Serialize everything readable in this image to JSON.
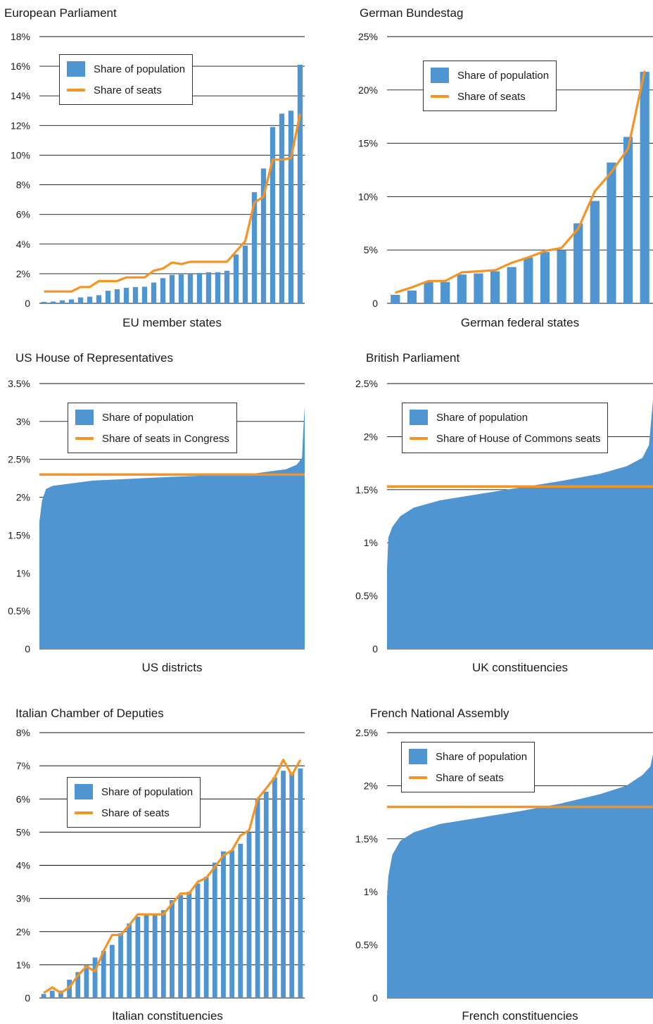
{
  "colors": {
    "population": "#4f95d2",
    "seats": "#f39424",
    "grid": "#111111"
  },
  "chart_data": [
    {
      "id": "eu",
      "type": "bar",
      "title": "European Parliament",
      "xlabel": "EU member states",
      "ylim": [
        0,
        18
      ],
      "yticks": [
        "0",
        "2%",
        "4%",
        "6%",
        "8%",
        "10%",
        "12%",
        "14%",
        "16%",
        "18%"
      ],
      "legend": [
        "Share of population",
        "Share of seats"
      ],
      "series": [
        {
          "name": "Share of population",
          "kind": "bar",
          "values": [
            0.1,
            0.12,
            0.2,
            0.26,
            0.4,
            0.45,
            0.55,
            0.85,
            0.95,
            1.05,
            1.1,
            1.12,
            1.4,
            1.7,
            1.92,
            1.95,
            2.0,
            2.05,
            2.1,
            2.1,
            2.2,
            3.3,
            3.9,
            7.5,
            9.1,
            11.9,
            12.8,
            13.0,
            16.1
          ]
        },
        {
          "name": "Share of seats",
          "kind": "line",
          "values": [
            0.8,
            0.8,
            0.8,
            0.8,
            1.1,
            1.1,
            1.5,
            1.5,
            1.5,
            1.75,
            1.75,
            1.75,
            2.2,
            2.35,
            2.75,
            2.65,
            2.8,
            2.8,
            2.8,
            2.8,
            2.8,
            3.5,
            4.2,
            6.8,
            7.2,
            9.7,
            9.7,
            9.8,
            12.8
          ]
        }
      ]
    },
    {
      "id": "de",
      "type": "bar",
      "title": "German Bundestag",
      "xlabel": "German federal states",
      "ylim": [
        0,
        25
      ],
      "yticks": [
        "0",
        "5%",
        "10%",
        "15%",
        "20%",
        "25%"
      ],
      "legend": [
        "Share of population",
        "Share of seats"
      ],
      "series": [
        {
          "name": "Share of population",
          "kind": "bar",
          "values": [
            0.8,
            1.2,
            2.0,
            2.0,
            2.7,
            2.8,
            3.0,
            3.4,
            4.3,
            4.8,
            5.0,
            7.5,
            9.6,
            13.2,
            15.6,
            21.7
          ]
        },
        {
          "name": "Share of seats",
          "kind": "line",
          "values": [
            1.0,
            1.5,
            2.1,
            2.1,
            2.9,
            3.0,
            3.1,
            3.8,
            4.3,
            4.9,
            5.2,
            7.0,
            10.5,
            12.3,
            14.5,
            21.8
          ]
        }
      ]
    },
    {
      "id": "us",
      "type": "area",
      "title": "US House of Representatives",
      "xlabel": "US districts",
      "ylim": [
        0,
        3.5
      ],
      "yticks": [
        "0",
        "0.5%",
        "1%",
        "1.5%",
        "2%",
        "2.5%",
        "3%",
        "3.5%"
      ],
      "legend": [
        "Share of population",
        "Share of seats in Congress"
      ],
      "series": [
        {
          "name": "Share of population",
          "kind": "area",
          "x": [
            0,
            0.01,
            0.025,
            0.05,
            0.2,
            0.5,
            0.8,
            0.93,
            0.97,
            0.99,
            0.995,
            1
          ],
          "values": [
            1.68,
            1.96,
            2.11,
            2.15,
            2.22,
            2.27,
            2.31,
            2.37,
            2.43,
            2.52,
            2.9,
            3.2
          ]
        },
        {
          "name": "Share of seats in Congress",
          "kind": "hline",
          "values": [
            2.3
          ]
        }
      ]
    },
    {
      "id": "uk",
      "type": "area",
      "title": "British Parliament",
      "xlabel": "UK constituencies",
      "ylim": [
        0,
        2.5
      ],
      "yticks": [
        "0",
        "0.5%",
        "1%",
        "1.5%",
        "2%",
        "2.5%"
      ],
      "legend": [
        "Share of population",
        "Share of House of Commons seats"
      ],
      "series": [
        {
          "name": "Share of population",
          "kind": "area",
          "x": [
            0,
            0.005,
            0.02,
            0.05,
            0.1,
            0.2,
            0.35,
            0.5,
            0.65,
            0.8,
            0.9,
            0.96,
            0.985,
            1
          ],
          "values": [
            0.75,
            1.05,
            1.15,
            1.25,
            1.33,
            1.4,
            1.46,
            1.52,
            1.58,
            1.65,
            1.72,
            1.8,
            1.92,
            2.35
          ]
        },
        {
          "name": "Share of House of Commons seats",
          "kind": "hline",
          "values": [
            1.53
          ]
        }
      ]
    },
    {
      "id": "it",
      "type": "bar",
      "title": "Italian Chamber of Deputies",
      "xlabel": "Italian constituencies",
      "ylim": [
        0,
        8
      ],
      "yticks": [
        "0",
        "1%",
        "2%",
        "3%",
        "4%",
        "5%",
        "6%",
        "7%",
        "8%"
      ],
      "legend": [
        "Share of population",
        "Share of seats"
      ],
      "series": [
        {
          "name": "Share of population",
          "kind": "bar",
          "values": [
            0.12,
            0.22,
            0.22,
            0.55,
            0.78,
            1.0,
            1.22,
            1.42,
            1.6,
            1.95,
            2.25,
            2.45,
            2.5,
            2.5,
            2.65,
            2.95,
            3.1,
            3.2,
            3.45,
            3.65,
            4.08,
            4.42,
            4.45,
            4.65,
            5.0,
            6.0,
            6.22,
            6.65,
            6.85,
            6.8,
            6.92
          ]
        },
        {
          "name": "Share of seats",
          "kind": "line",
          "values": [
            0.15,
            0.32,
            0.15,
            0.32,
            0.68,
            0.95,
            0.8,
            1.42,
            1.9,
            1.9,
            2.2,
            2.52,
            2.52,
            2.52,
            2.52,
            2.85,
            3.15,
            3.15,
            3.5,
            3.62,
            3.95,
            4.3,
            4.45,
            4.9,
            5.05,
            6.0,
            6.32,
            6.65,
            7.18,
            6.72,
            7.18
          ]
        }
      ]
    },
    {
      "id": "fr",
      "type": "area",
      "title": "French National Assembly",
      "xlabel": "French constituencies",
      "ylim": [
        0,
        2.5
      ],
      "yticks": [
        "0",
        "0.5%",
        "1%",
        "1.5%",
        "2%",
        "2.5%"
      ],
      "legend": [
        "Share of population",
        "Share of seats"
      ],
      "series": [
        {
          "name": "Share of population",
          "kind": "area",
          "x": [
            0,
            0.005,
            0.02,
            0.05,
            0.1,
            0.2,
            0.35,
            0.5,
            0.65,
            0.8,
            0.9,
            0.96,
            0.99,
            1
          ],
          "values": [
            0.95,
            1.15,
            1.35,
            1.48,
            1.56,
            1.64,
            1.7,
            1.76,
            1.83,
            1.92,
            2.0,
            2.1,
            2.18,
            2.3
          ]
        },
        {
          "name": "Share of seats",
          "kind": "hline",
          "values": [
            1.8
          ]
        }
      ]
    }
  ]
}
